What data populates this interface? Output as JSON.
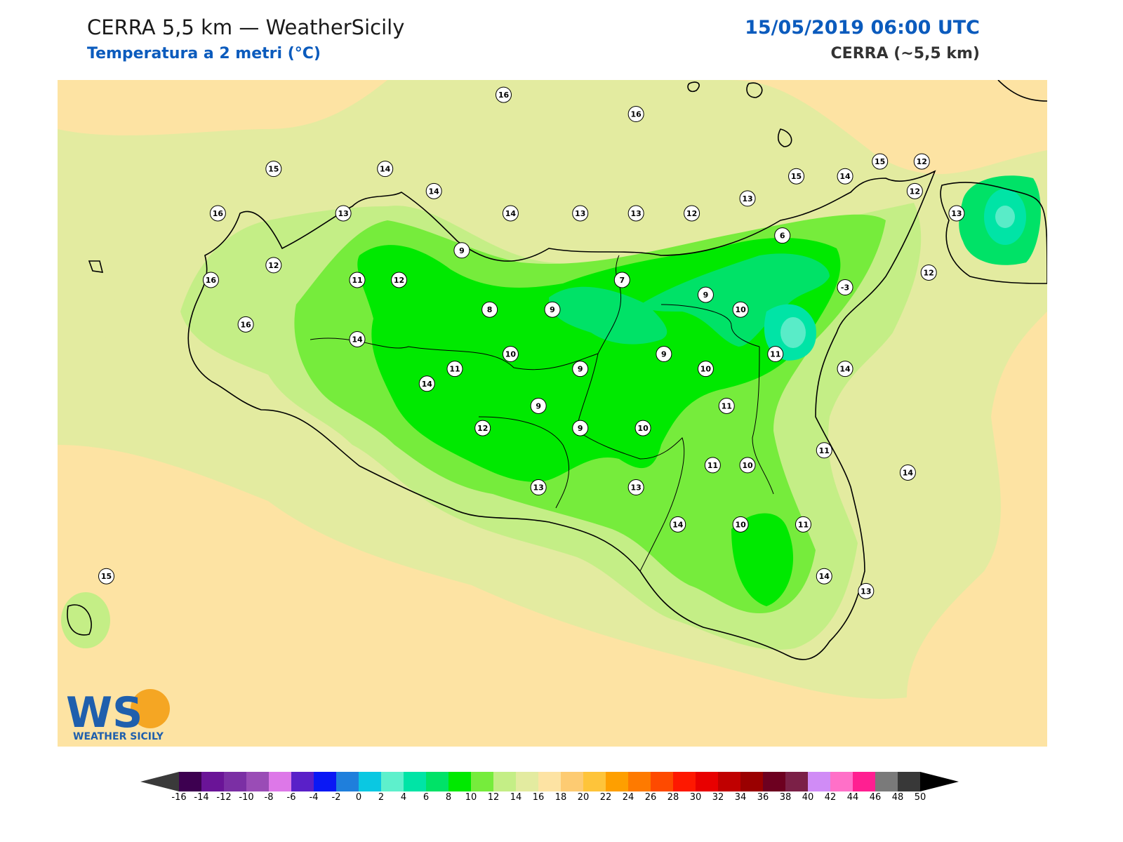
{
  "header": {
    "title": "CERRA 5,5 km — WeatherSicily",
    "subtitle": "Temperatura a 2 metri (°C)",
    "datetime": "15/05/2019 06:00 UTC",
    "model": "CERRA (~5,5 km)"
  },
  "logo": {
    "letters": "WS",
    "text": "WEATHER SICILY"
  },
  "colors": {
    "sea": "#fde3a3",
    "band_14_16": "#e3eba0",
    "band_12_14": "#c4ee86",
    "band_10_12": "#76ec3c",
    "band_8_10": "#00e900",
    "band_6_8": "#00e267",
    "band_4_6": "#00e4a6",
    "band_2_4": "#59ecc8"
  },
  "stations": [
    {
      "label": "16",
      "lon": 14.0,
      "lat": 38.8
    },
    {
      "label": "16",
      "lon": 14.95,
      "lat": 38.67
    },
    {
      "label": "15",
      "lon": 12.35,
      "lat": 38.3
    },
    {
      "label": "14",
      "lon": 13.15,
      "lat": 38.3
    },
    {
      "label": "14",
      "lon": 13.5,
      "lat": 38.15
    },
    {
      "label": "16",
      "lon": 11.95,
      "lat": 38.0
    },
    {
      "label": "13",
      "lon": 12.85,
      "lat": 38.0
    },
    {
      "label": "14",
      "lon": 14.05,
      "lat": 38.0
    },
    {
      "label": "13",
      "lon": 14.55,
      "lat": 38.0
    },
    {
      "label": "13",
      "lon": 14.95,
      "lat": 38.0
    },
    {
      "label": "12",
      "lon": 15.35,
      "lat": 38.0
    },
    {
      "label": "13",
      "lon": 15.75,
      "lat": 38.1
    },
    {
      "label": "15",
      "lon": 16.1,
      "lat": 38.25
    },
    {
      "label": "14",
      "lon": 16.45,
      "lat": 38.25
    },
    {
      "label": "15",
      "lon": 16.7,
      "lat": 38.35
    },
    {
      "label": "12",
      "lon": 17.0,
      "lat": 38.35
    },
    {
      "label": "12",
      "lon": 16.95,
      "lat": 38.15
    },
    {
      "label": "13",
      "lon": 17.25,
      "lat": 38.0
    },
    {
      "label": "6",
      "lon": 16.0,
      "lat": 37.85
    },
    {
      "label": "12",
      "lon": 12.35,
      "lat": 37.65
    },
    {
      "label": "9",
      "lon": 13.7,
      "lat": 37.75
    },
    {
      "label": "7",
      "lon": 14.85,
      "lat": 37.55
    },
    {
      "label": "12",
      "lon": 17.05,
      "lat": 37.6
    },
    {
      "label": "11",
      "lon": 12.95,
      "lat": 37.55
    },
    {
      "label": "12",
      "lon": 13.25,
      "lat": 37.55
    },
    {
      "label": "-3",
      "lon": 16.45,
      "lat": 37.5
    },
    {
      "label": "16",
      "lon": 11.9,
      "lat": 37.55
    },
    {
      "label": "9",
      "lon": 15.45,
      "lat": 37.45
    },
    {
      "label": "8",
      "lon": 13.9,
      "lat": 37.35
    },
    {
      "label": "9",
      "lon": 14.35,
      "lat": 37.35
    },
    {
      "label": "10",
      "lon": 15.7,
      "lat": 37.35
    },
    {
      "label": "16",
      "lon": 12.15,
      "lat": 37.25
    },
    {
      "label": "14",
      "lon": 12.95,
      "lat": 37.15
    },
    {
      "label": "10",
      "lon": 14.05,
      "lat": 37.05
    },
    {
      "label": "9",
      "lon": 15.15,
      "lat": 37.05
    },
    {
      "label": "11",
      "lon": 15.95,
      "lat": 37.05
    },
    {
      "label": "11",
      "lon": 13.65,
      "lat": 36.95
    },
    {
      "label": "9",
      "lon": 14.55,
      "lat": 36.95
    },
    {
      "label": "10",
      "lon": 15.45,
      "lat": 36.95
    },
    {
      "label": "14",
      "lon": 16.45,
      "lat": 36.95
    },
    {
      "label": "14",
      "lon": 13.45,
      "lat": 36.85
    },
    {
      "label": "11",
      "lon": 15.6,
      "lat": 36.7
    },
    {
      "label": "9",
      "lon": 14.25,
      "lat": 36.7
    },
    {
      "label": "12",
      "lon": 13.85,
      "lat": 36.55
    },
    {
      "label": "9",
      "lon": 14.55,
      "lat": 36.55
    },
    {
      "label": "10",
      "lon": 15.0,
      "lat": 36.55
    },
    {
      "label": "11",
      "lon": 15.5,
      "lat": 36.3
    },
    {
      "label": "10",
      "lon": 15.75,
      "lat": 36.3
    },
    {
      "label": "11",
      "lon": 16.3,
      "lat": 36.4
    },
    {
      "label": "14",
      "lon": 16.9,
      "lat": 36.25
    },
    {
      "label": "13",
      "lon": 14.25,
      "lat": 36.15
    },
    {
      "label": "13",
      "lon": 14.95,
      "lat": 36.15
    },
    {
      "label": "14",
      "lon": 15.25,
      "lat": 35.9
    },
    {
      "label": "10",
      "lon": 15.7,
      "lat": 35.9
    },
    {
      "label": "11",
      "lon": 16.15,
      "lat": 35.9
    },
    {
      "label": "15",
      "lon": 11.15,
      "lat": 35.55
    },
    {
      "label": "14",
      "lon": 16.3,
      "lat": 35.55
    },
    {
      "label": "13",
      "lon": 16.6,
      "lat": 35.45
    }
  ],
  "colorbar": {
    "ticks": [
      "-16",
      "-14",
      "-12",
      "-10",
      "-8",
      "-6",
      "-4",
      "-2",
      "0",
      "2",
      "4",
      "6",
      "8",
      "10",
      "12",
      "14",
      "16",
      "18",
      "20",
      "22",
      "24",
      "26",
      "28",
      "30",
      "32",
      "34",
      "36",
      "38",
      "40",
      "42",
      "44",
      "46",
      "48",
      "50"
    ],
    "colors": [
      "#3d0050",
      "#6a1497",
      "#7b2fa4",
      "#9a4cb6",
      "#dd78e8",
      "#5a20c8",
      "#0a18f5",
      "#1f7fdc",
      "#0ac8e2",
      "#5ef0cc",
      "#00e4a6",
      "#00e267",
      "#00e900",
      "#76ec3c",
      "#c4ee86",
      "#e3eba0",
      "#fde3a3",
      "#fdcb72",
      "#fec43a",
      "#fe9f00",
      "#fe7a00",
      "#fe4a00",
      "#fe1800",
      "#e80000",
      "#c00000",
      "#9a0000",
      "#6d0020",
      "#7b2047",
      "#d08cf6",
      "#ff70c8",
      "#ff1f91",
      "#7a7a7a",
      "#383838"
    ]
  }
}
